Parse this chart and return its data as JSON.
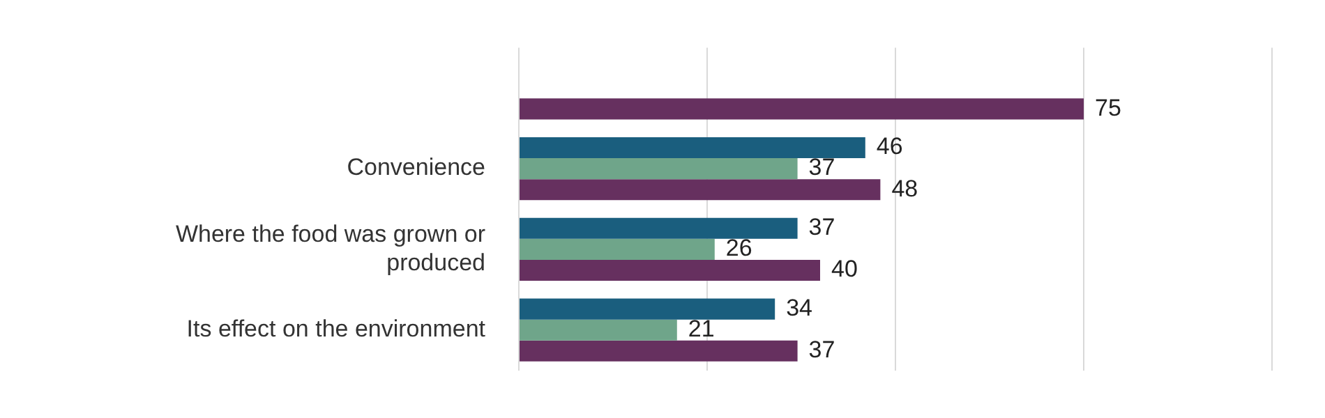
{
  "chart_data": {
    "type": "bar",
    "orientation": "horizontal",
    "categories": [
      null,
      "Convenience",
      "Where the food was grown or produced",
      "Its effect on the environment"
    ],
    "series": [
      {
        "color": "#1a5e7e",
        "values": [
          null,
          46,
          37,
          34
        ]
      },
      {
        "color": "#6fa58a",
        "values": [
          null,
          37,
          26,
          21
        ]
      },
      {
        "color": "#66305f",
        "values": [
          75,
          48,
          40,
          37
        ]
      }
    ],
    "xlim": [
      0,
      100
    ],
    "xticks": [
      {
        "value": 0,
        "label": null
      },
      {
        "value": 25,
        "label": null
      },
      {
        "value": 50,
        "label": null
      },
      {
        "value": 75,
        "label": null
      },
      {
        "value": 100,
        "label": null
      }
    ],
    "tick_labels": "y",
    "grid": "x",
    "data_labels": true,
    "legend": false
  }
}
